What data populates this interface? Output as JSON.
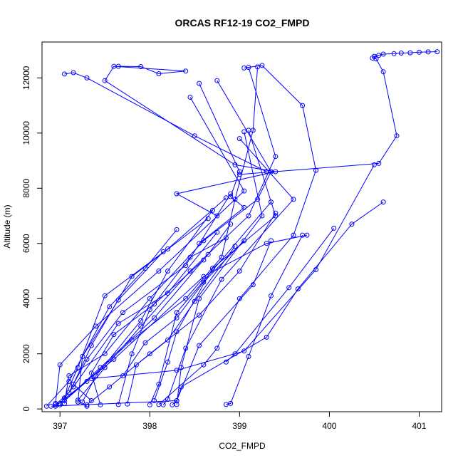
{
  "chart_data": {
    "type": "scatter",
    "title": "ORCAS RF12-19 CO2_FMPD",
    "xlabel": "CO2_FMPD",
    "ylabel": "Altitude (m)",
    "xlim": [
      396.8,
      401.25
    ],
    "ylim": [
      -100,
      13300
    ],
    "x_ticks": [
      397,
      398,
      399,
      400,
      401
    ],
    "y_ticks": [
      0,
      2000,
      4000,
      6000,
      8000,
      10000,
      12000
    ],
    "x_tick_labels": [
      "397",
      "398",
      "399",
      "400",
      "401"
    ],
    "y_tick_labels": [
      "0",
      "2000",
      "4000",
      "6000",
      "8000",
      "10000",
      "12000"
    ],
    "grid": false,
    "legend": "none",
    "marker": "open-circle",
    "colors": {
      "series": "#0000ff",
      "axes": "#000000"
    },
    "series": [
      {
        "values": [
          [
            401.2,
            12950
          ],
          [
            401.1,
            12940
          ],
          [
            401.0,
            12930
          ],
          [
            400.9,
            12910
          ],
          [
            400.8,
            12900
          ],
          [
            400.72,
            12880
          ],
          [
            400.6,
            12860
          ],
          [
            400.55,
            12820
          ],
          [
            400.5,
            12780
          ],
          [
            400.48,
            12720
          ],
          [
            400.52,
            12690
          ],
          [
            400.6,
            12220
          ],
          [
            400.75,
            9900
          ],
          [
            400.55,
            8900
          ],
          [
            399.0,
            8500
          ]
        ]
      },
      {
        "values": [
          [
            397.05,
            12140
          ],
          [
            397.15,
            12190
          ],
          [
            397.3,
            12000
          ],
          [
            398.5,
            9900
          ],
          [
            399.3,
            8600
          ]
        ]
      },
      {
        "values": [
          [
            397.65,
            12420
          ],
          [
            397.9,
            12410
          ],
          [
            398.1,
            12150
          ],
          [
            398.4,
            12250
          ],
          [
            397.6,
            12420
          ],
          [
            397.5,
            11900
          ],
          [
            398.95,
            8850
          ],
          [
            399.4,
            8600
          ],
          [
            398.3,
            7800
          ],
          [
            398.75,
            7000
          ]
        ]
      },
      {
        "values": [
          [
            398.55,
            11800
          ],
          [
            399.0,
            8600
          ],
          [
            398.9,
            7700
          ],
          [
            399.05,
            7300
          ],
          [
            398.55,
            6000
          ]
        ]
      },
      {
        "values": [
          [
            398.45,
            11300
          ],
          [
            399.05,
            7900
          ],
          [
            398.1,
            5000
          ],
          [
            397.4,
            3000
          ],
          [
            397.0,
            1600
          ],
          [
            396.95,
            200
          ]
        ]
      },
      {
        "values": [
          [
            398.75,
            11900
          ],
          [
            399.35,
            8600
          ],
          [
            399.2,
            7600
          ],
          [
            398.6,
            6100
          ],
          [
            398.0,
            4000
          ],
          [
            397.5,
            2000
          ],
          [
            397.1,
            1200
          ],
          [
            397.05,
            200
          ]
        ]
      },
      {
        "values": [
          [
            399.05,
            12360
          ],
          [
            399.25,
            12450
          ],
          [
            399.7,
            11000
          ],
          [
            399.85,
            8650
          ],
          [
            399.6,
            6300
          ],
          [
            399.0,
            4000
          ],
          [
            398.75,
            2200
          ],
          [
            398.6,
            1600
          ],
          [
            398.1,
            160
          ]
        ]
      },
      {
        "values": [
          [
            399.1,
            12380
          ],
          [
            399.4,
            9150
          ],
          [
            399.1,
            7000
          ],
          [
            398.45,
            5000
          ],
          [
            397.9,
            3000
          ],
          [
            397.5,
            1500
          ],
          [
            397.2,
            320
          ],
          [
            397.3,
            100
          ]
        ]
      },
      {
        "values": [
          [
            399.2,
            12400
          ],
          [
            399.15,
            10100
          ],
          [
            398.95,
            7600
          ],
          [
            398.8,
            5500
          ],
          [
            398.4,
            4000
          ],
          [
            397.8,
            2500
          ],
          [
            397.3,
            1000
          ],
          [
            397.0,
            150
          ]
        ]
      },
      {
        "values": [
          [
            399.1,
            10100
          ],
          [
            399.4,
            7000
          ],
          [
            398.7,
            5100
          ],
          [
            398.3,
            2800
          ],
          [
            398.2,
            1700
          ],
          [
            398.05,
            300
          ]
        ]
      },
      {
        "values": [
          [
            399.05,
            10050
          ],
          [
            399.25,
            7000
          ],
          [
            398.55,
            4000
          ],
          [
            398.35,
            1500
          ],
          [
            398.3,
            160
          ]
        ]
      },
      {
        "values": [
          [
            399.0,
            9800
          ],
          [
            399.6,
            7600
          ],
          [
            398.8,
            4700
          ],
          [
            398.4,
            2200
          ],
          [
            398.2,
            350
          ],
          [
            398.15,
            150
          ]
        ]
      },
      {
        "values": [
          [
            398.9,
            7800
          ],
          [
            398.4,
            5200
          ],
          [
            397.7,
            3500
          ],
          [
            397.3,
            1800
          ],
          [
            397.1,
            600
          ],
          [
            396.95,
            150
          ]
        ]
      },
      {
        "values": [
          [
            398.85,
            7650
          ],
          [
            398.2,
            5800
          ],
          [
            397.5,
            4100
          ],
          [
            397.2,
            1500
          ],
          [
            397.05,
            400
          ]
        ]
      },
      {
        "values": [
          [
            398.7,
            7200
          ],
          [
            398.2,
            5000
          ],
          [
            397.9,
            3200
          ],
          [
            397.4,
            1200
          ],
          [
            397.25,
            250
          ]
        ]
      },
      {
        "values": [
          [
            398.65,
            6900
          ],
          [
            397.8,
            4800
          ],
          [
            397.35,
            2300
          ],
          [
            397.15,
            900
          ],
          [
            397.35,
            300
          ]
        ]
      },
      {
        "values": [
          [
            399.35,
            7500
          ],
          [
            398.3,
            3500
          ],
          [
            398.1,
            900
          ],
          [
            398.0,
            150
          ]
        ]
      },
      {
        "values": [
          [
            399.4,
            7100
          ],
          [
            399.0,
            5000
          ],
          [
            398.55,
            3400
          ],
          [
            398.0,
            2000
          ],
          [
            397.55,
            800
          ],
          [
            397.3,
            150
          ]
        ]
      },
      {
        "values": [
          [
            399.7,
            6300
          ],
          [
            399.35,
            4100
          ],
          [
            399.1,
            1900
          ],
          [
            398.9,
            200
          ],
          [
            398.85,
            160
          ]
        ]
      },
      {
        "values": [
          [
            400.05,
            6550
          ],
          [
            399.55,
            4400
          ],
          [
            398.95,
            2000
          ],
          [
            398.85,
            1700
          ]
        ]
      },
      {
        "values": [
          [
            400.6,
            7500
          ],
          [
            400.25,
            6700
          ],
          [
            399.65,
            4350
          ],
          [
            399.3,
            2600
          ],
          [
            398.35,
            800
          ],
          [
            398.3,
            300
          ],
          [
            398.25,
            150
          ]
        ]
      },
      {
        "values": [
          [
            400.5,
            8850
          ],
          [
            399.85,
            5050
          ],
          [
            399.05,
            2100
          ],
          [
            398.3,
            1400
          ],
          [
            397.35,
            1100
          ]
        ]
      },
      {
        "values": [
          [
            399.75,
            6300
          ],
          [
            399.3,
            6000
          ],
          [
            398.6,
            4800
          ],
          [
            397.6,
            1800
          ],
          [
            396.95,
            100
          ]
        ]
      },
      {
        "values": [
          [
            399.35,
            6100
          ],
          [
            399.15,
            4500
          ],
          [
            398.55,
            2300
          ],
          [
            398.3,
            300
          ],
          [
            396.9,
            100
          ]
        ]
      },
      {
        "values": [
          [
            398.85,
            6200
          ],
          [
            398.45,
            5500
          ],
          [
            398.0,
            3600
          ],
          [
            397.8,
            2000
          ],
          [
            397.65,
            160
          ]
        ]
      },
      {
        "values": [
          [
            398.75,
            6400
          ],
          [
            398.2,
            4200
          ],
          [
            397.65,
            3100
          ],
          [
            397.15,
            800
          ],
          [
            397.0,
            200
          ]
        ]
      },
      {
        "values": [
          [
            398.3,
            6500
          ],
          [
            397.95,
            5100
          ],
          [
            397.55,
            3700
          ],
          [
            397.1,
            1000
          ],
          [
            396.85,
            100
          ]
        ]
      },
      {
        "values": [
          [
            398.15,
            5700
          ],
          [
            397.65,
            3950
          ],
          [
            397.25,
            1900
          ],
          [
            397.2,
            250
          ]
        ]
      },
      {
        "values": [
          [
            398.6,
            5400
          ],
          [
            398.05,
            3800
          ],
          [
            397.6,
            2700
          ],
          [
            397.35,
            1300
          ],
          [
            397.45,
            150
          ]
        ]
      },
      {
        "values": [
          [
            398.95,
            5900
          ],
          [
            398.5,
            3900
          ],
          [
            398.2,
            2500
          ],
          [
            397.85,
            1600
          ],
          [
            397.75,
            180
          ]
        ]
      },
      {
        "values": [
          [
            399.05,
            6100
          ],
          [
            398.6,
            4600
          ],
          [
            398.3,
            3300
          ],
          [
            397.95,
            2400
          ],
          [
            397.7,
            1200
          ]
        ]
      },
      {
        "values": [
          [
            398.9,
            6700
          ],
          [
            398.65,
            5600
          ],
          [
            398.05,
            3300
          ],
          [
            397.45,
            1500
          ],
          [
            397.05,
            300
          ]
        ]
      }
    ]
  }
}
